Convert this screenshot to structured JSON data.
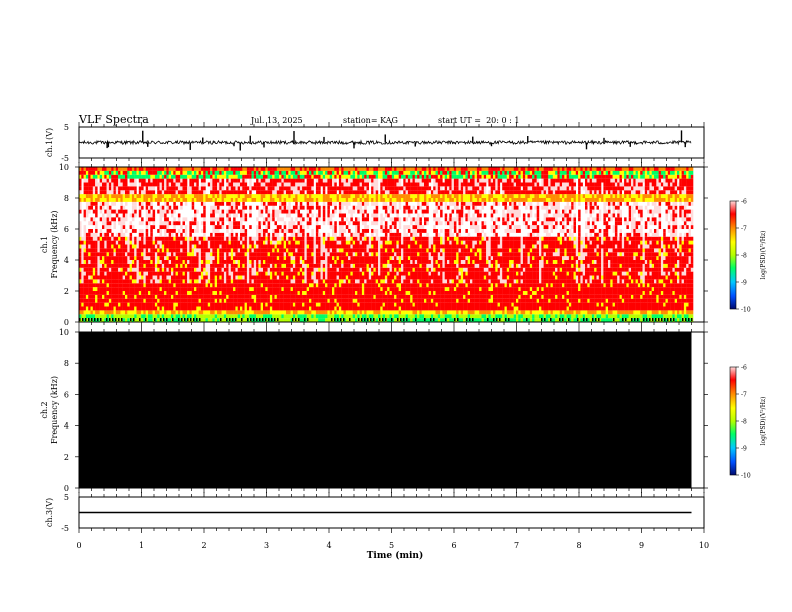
{
  "header": {
    "title": "VLF Spectra",
    "date": "Jul. 13, 2025",
    "station": "station= KAG",
    "start": "start UT =  20: 0 : 1"
  },
  "chart_data": [
    {
      "type": "line",
      "panel": "ch1-waveform",
      "ylabel": "ch.1(V)",
      "ylim": [
        -5,
        5
      ],
      "yticks": [
        "5",
        "-5"
      ],
      "x_range_min": [
        0,
        9.8
      ],
      "baseline": 0,
      "spikes": [
        {
          "t": 0.45,
          "v": -1.8
        },
        {
          "t": 0.47,
          "v": -1.5
        },
        {
          "t": 1.02,
          "v": 3.8
        },
        {
          "t": 1.1,
          "v": -1.4
        },
        {
          "t": 1.78,
          "v": -2.4
        },
        {
          "t": 1.98,
          "v": 1.6
        },
        {
          "t": 2.48,
          "v": -1.2
        },
        {
          "t": 2.58,
          "v": -2.6
        },
        {
          "t": 2.74,
          "v": 2.2
        },
        {
          "t": 2.96,
          "v": -1.6
        },
        {
          "t": 3.44,
          "v": 3.7
        },
        {
          "t": 3.92,
          "v": 1.8
        },
        {
          "t": 4.4,
          "v": -1.9
        },
        {
          "t": 4.9,
          "v": 2.6
        },
        {
          "t": 5.38,
          "v": -1.3
        },
        {
          "t": 6.3,
          "v": 1.9
        },
        {
          "t": 6.6,
          "v": -1.2
        },
        {
          "t": 7.18,
          "v": 2.1
        },
        {
          "t": 8.12,
          "v": -2.2
        },
        {
          "t": 8.4,
          "v": 1.5
        },
        {
          "t": 8.82,
          "v": -1.4
        },
        {
          "t": 9.64,
          "v": 3.9
        },
        {
          "t": 9.7,
          "v": -1.5
        }
      ]
    },
    {
      "type": "heatmap",
      "panel": "ch1-spectrogram",
      "ylabel_top": "ch.1",
      "ylabel": "Frequency (kHz)",
      "ylim": [
        0,
        10
      ],
      "yticks": [
        "0",
        "2",
        "4",
        "6",
        "8",
        "10"
      ],
      "x_range_min": [
        0,
        9.8
      ],
      "state": "active",
      "colorbar": {
        "label": "log(PSD)(V²/Hz)",
        "range": [
          -10,
          -6
        ],
        "ticks": [
          "-6",
          "-7",
          "-8",
          "-9",
          "-10"
        ],
        "colors": [
          "#000a6e",
          "#0050ff",
          "#00c8ff",
          "#00ff64",
          "#b4ff00",
          "#ffff00",
          "#ff8c00",
          "#ff0000",
          "#ffdada"
        ]
      }
    },
    {
      "type": "heatmap",
      "panel": "ch2-spectrogram",
      "ylabel_top": "ch.2",
      "ylabel": "Frequency (kHz)",
      "ylim": [
        0,
        10
      ],
      "yticks": [
        "0",
        "2",
        "4",
        "6",
        "8",
        "10"
      ],
      "x_range_min": [
        0,
        9.8
      ],
      "state": "no-signal",
      "fill": "#000000",
      "colorbar": {
        "label": "log(PSD)(V²/Hz)",
        "range": [
          -10,
          -6
        ],
        "ticks": [
          "-6",
          "-7",
          "-8",
          "-9",
          "-10"
        ]
      }
    },
    {
      "type": "line",
      "panel": "ch3-waveform",
      "ylabel": "ch.3(V)",
      "ylim": [
        -5,
        5
      ],
      "yticks": [
        "5",
        "-5"
      ],
      "x_range_min": [
        0,
        9.8
      ],
      "baseline": 0
    }
  ],
  "x_axis": {
    "label": "Time (min)",
    "range": [
      0,
      10
    ],
    "ticks": [
      "0",
      "1",
      "2",
      "3",
      "4",
      "5",
      "6",
      "7",
      "8",
      "9",
      "10"
    ]
  }
}
